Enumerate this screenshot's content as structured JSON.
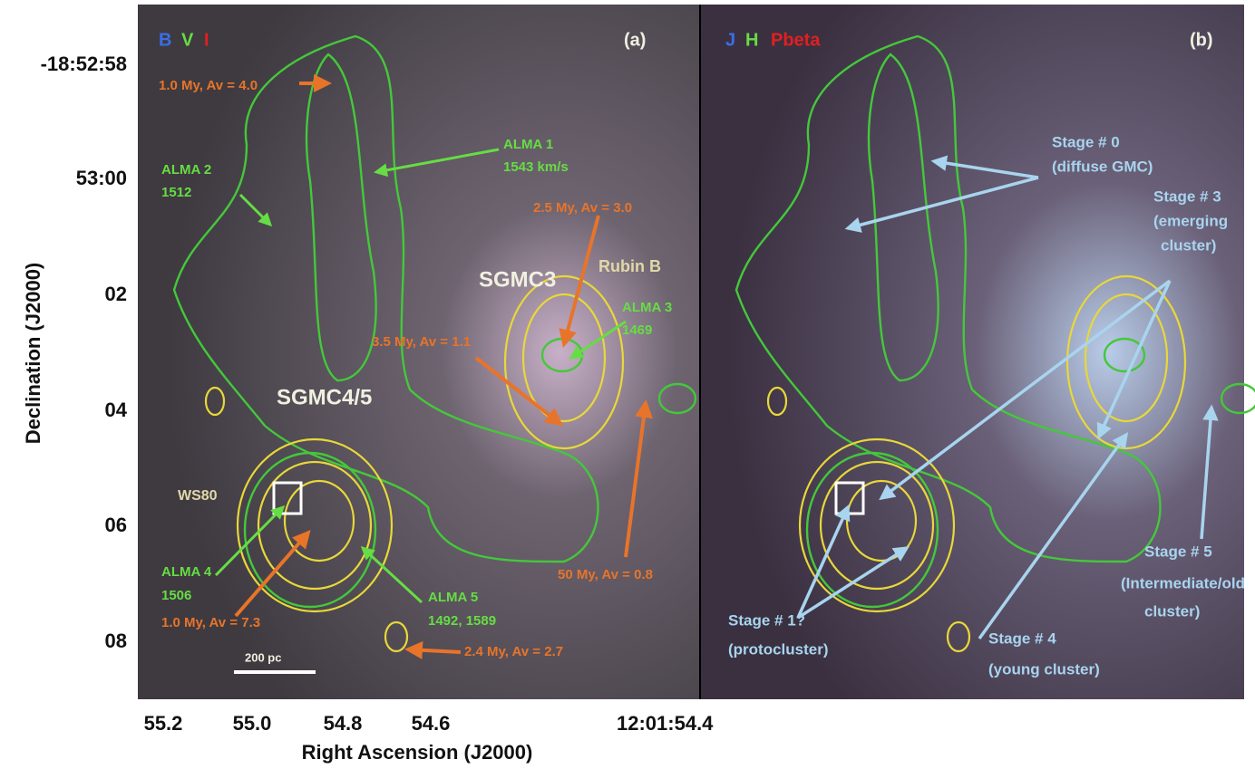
{
  "axes": {
    "y_label": "Declination (J2000)",
    "x_label": "Right Ascension (J2000)",
    "y_ticks": [
      "-18:52:58",
      "53:00",
      "02",
      "04",
      "06",
      "08"
    ],
    "x_ticks": [
      "55.2",
      "55.0",
      "54.8",
      "54.6",
      "12:01:54.4"
    ]
  },
  "panel_a": {
    "tag": "(a)",
    "bands": [
      "B",
      "V",
      "I"
    ],
    "scale_bar": "200 pc",
    "regions": [
      "SGMC3",
      "SGMC4/5",
      "Rubin B",
      "WS80"
    ],
    "alma": [
      [
        "ALMA 1",
        "1543 km/s"
      ],
      [
        "ALMA 2",
        "1512"
      ],
      [
        "ALMA 3",
        "1469"
      ],
      [
        "ALMA 4",
        "1506"
      ],
      [
        "ALMA 5",
        "1492, 1589"
      ]
    ],
    "ages": [
      "1.0 My, Av = 4.0",
      "2.5 My, Av = 3.0",
      "3.5 My, Av = 1.1",
      "50 My, Av = 0.8",
      "1.0 My, Av = 7.3",
      "2.4 My, Av = 2.7"
    ]
  },
  "panel_b": {
    "tag": "(b)",
    "bands": [
      "J",
      "H",
      "Pbeta"
    ],
    "stages": [
      [
        "Stage # 0",
        "(diffuse GMC)"
      ],
      [
        "Stage # 3",
        "(emerging",
        "cluster)"
      ],
      [
        "Stage # 5",
        "(Intermediate/old",
        "cluster)"
      ],
      [
        "Stage # 1?",
        "(protocluster)"
      ],
      [
        "Stage # 4",
        "(young cluster)"
      ]
    ]
  }
}
